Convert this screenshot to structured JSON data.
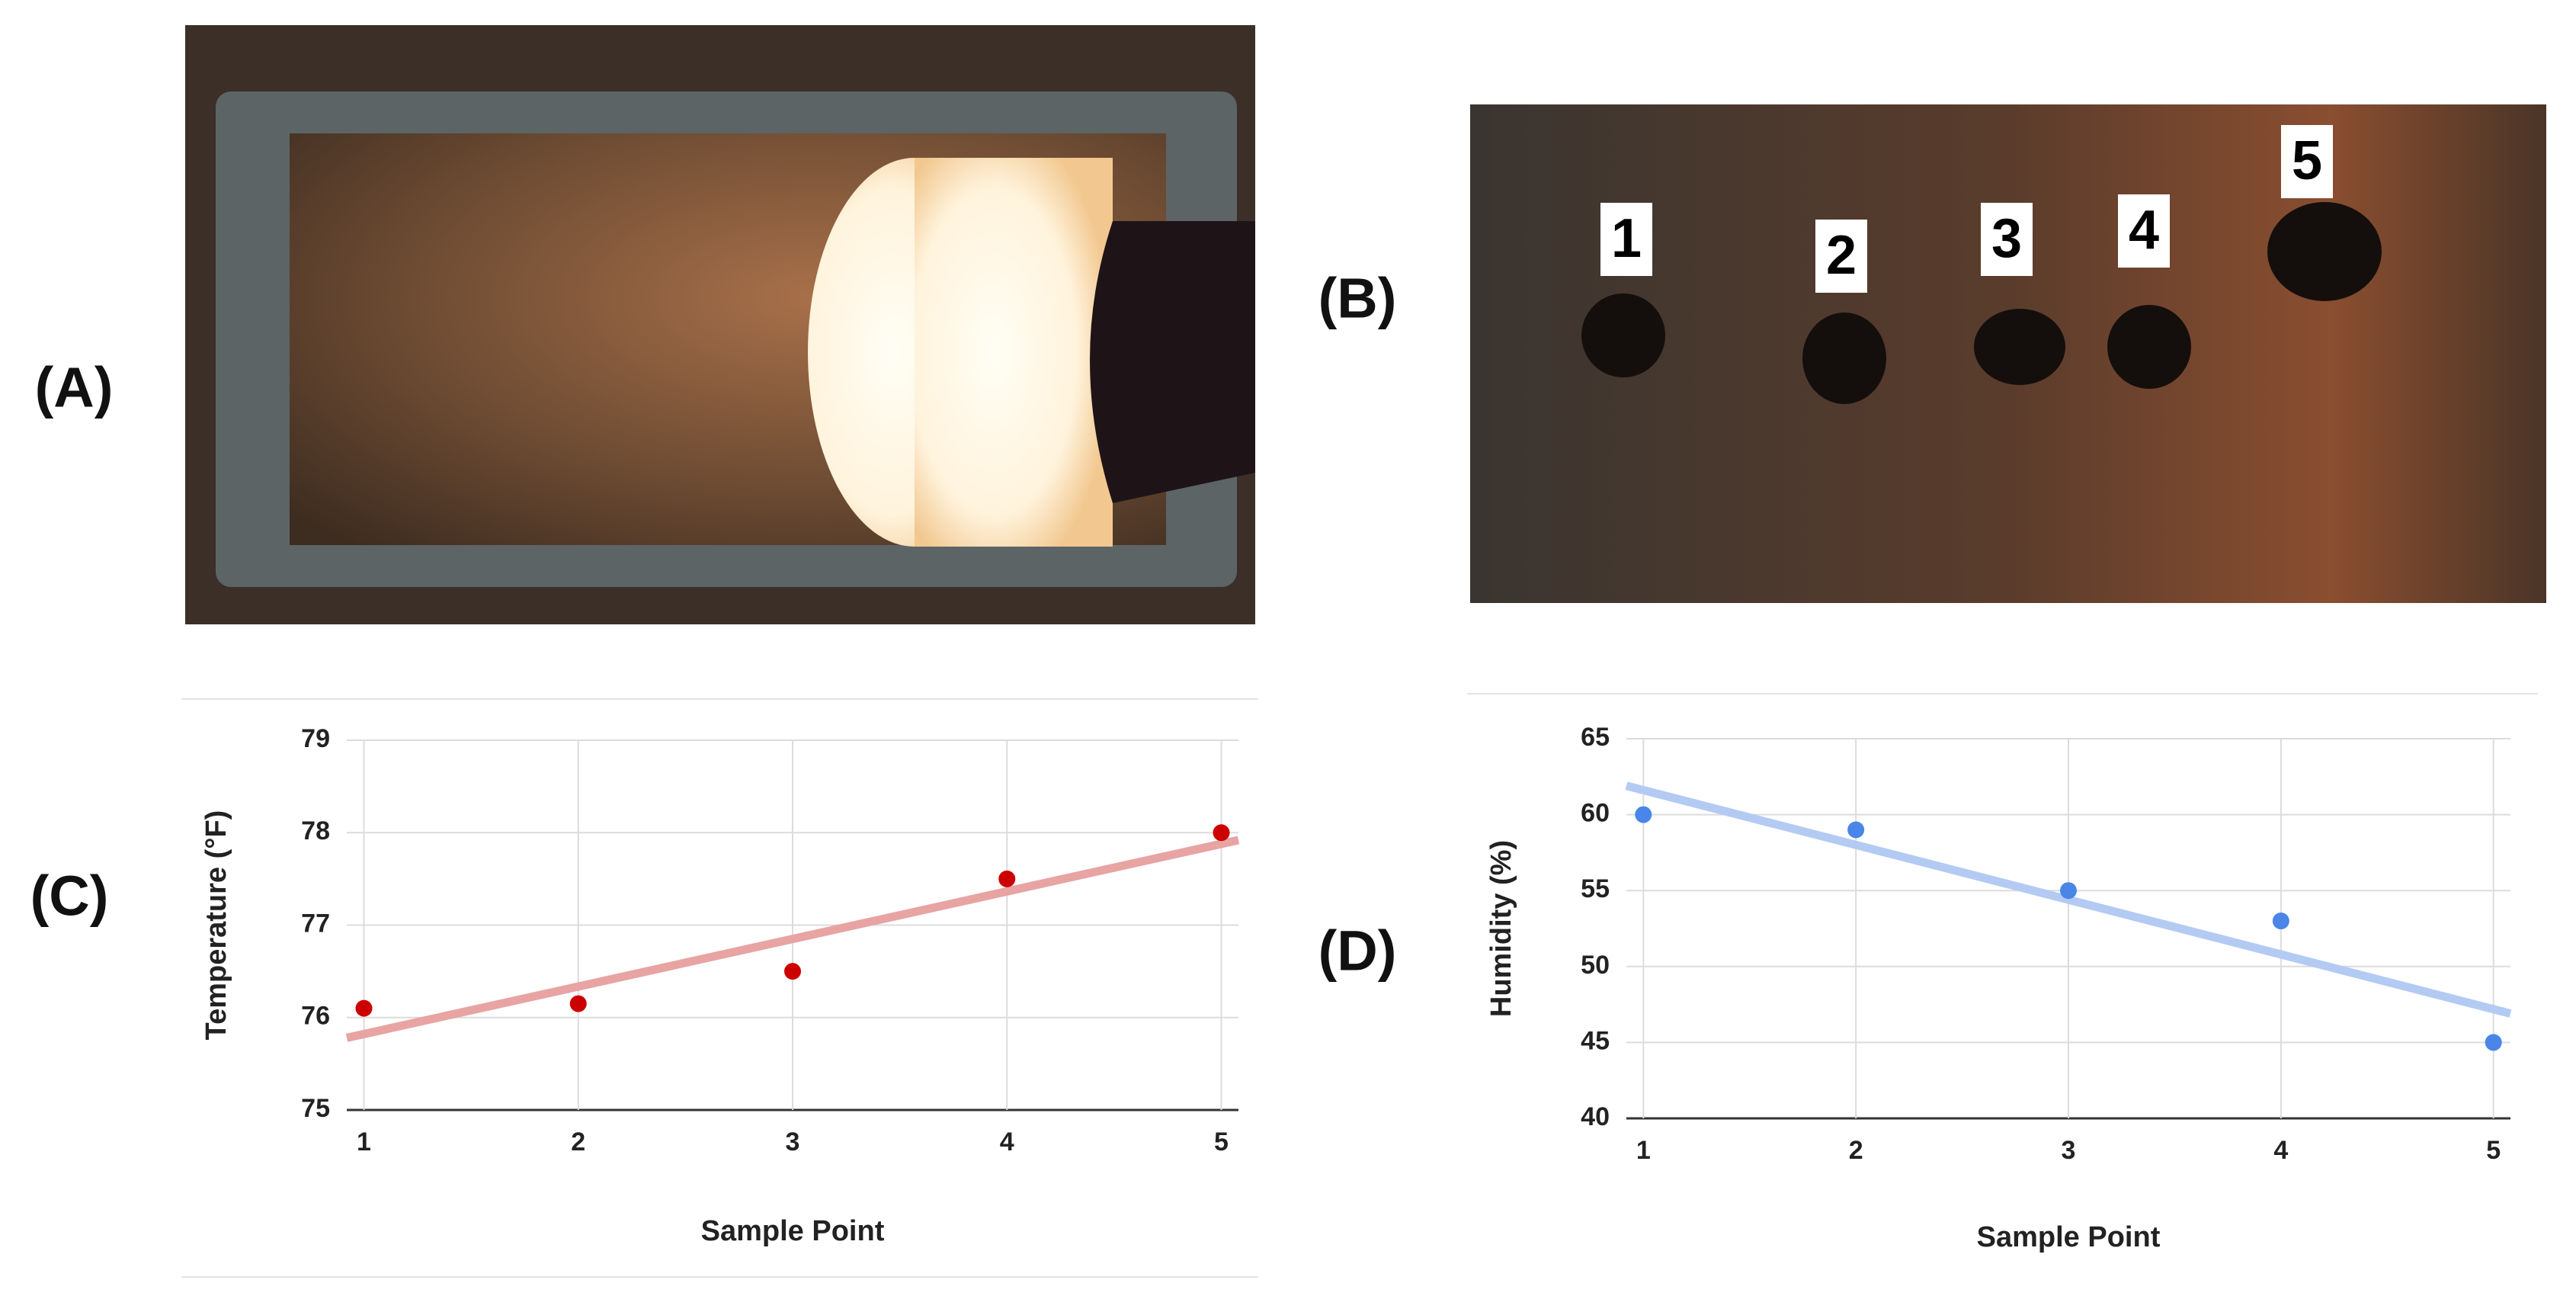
{
  "panels": {
    "labels": [
      "(A)",
      "(B)",
      "(C)",
      "(D)"
    ]
  },
  "photo_labels": [
    "1",
    "2",
    "3",
    "4",
    "5"
  ],
  "chart_data": [
    {
      "type": "scatter",
      "xlabel": "Sample Point",
      "ylabel": "Temperature (°F)",
      "x": [
        1,
        2,
        3,
        4,
        5
      ],
      "values": [
        76.1,
        76.15,
        76.5,
        77.5,
        78
      ],
      "color": "#cc0000",
      "trendline": {
        "x": [
          0.92,
          5.08
        ],
        "values": [
          75.78,
          77.92
        ],
        "color": "#e8a3a3"
      },
      "xlim": [
        0.92,
        5.08
      ],
      "ylim": [
        75,
        79
      ],
      "xticks": [
        1,
        2,
        3,
        4,
        5
      ],
      "yticks": [
        75,
        76,
        77,
        78,
        79
      ],
      "grid": true
    },
    {
      "type": "scatter",
      "xlabel": "Sample Point",
      "ylabel": "Humidity (%)",
      "x": [
        1,
        2,
        3,
        4,
        5
      ],
      "values": [
        60,
        59,
        55,
        53,
        45
      ],
      "color": "#4a86e8",
      "trendline": {
        "x": [
          0.92,
          5.08
        ],
        "values": [
          61.9,
          46.9
        ],
        "color": "#b3cbf3"
      },
      "xlim": [
        0.92,
        5.08
      ],
      "ylim": [
        40,
        65
      ],
      "xticks": [
        1,
        2,
        3,
        4,
        5
      ],
      "yticks": [
        40,
        45,
        50,
        55,
        60,
        65
      ],
      "grid": true
    }
  ]
}
